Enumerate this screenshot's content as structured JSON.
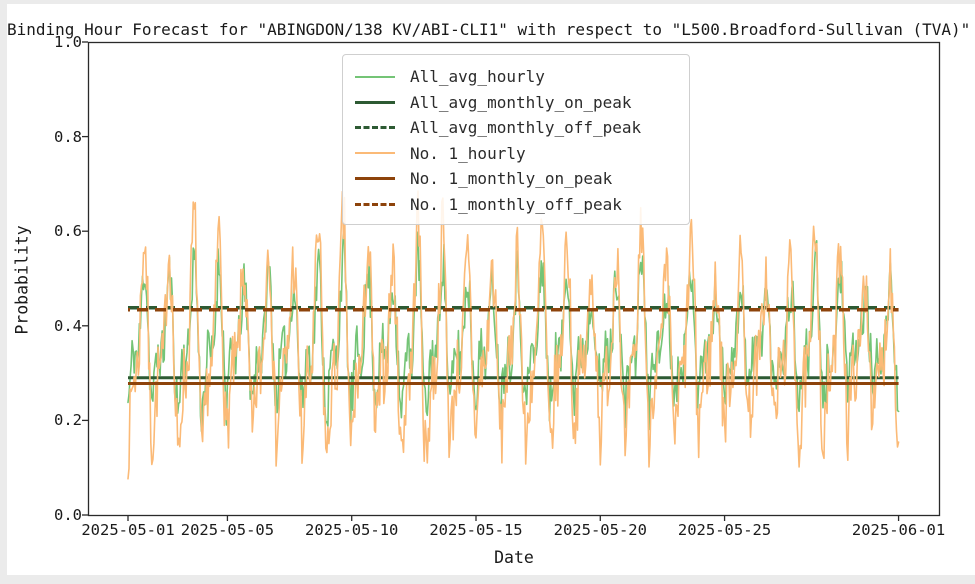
{
  "figure": {
    "title": "Binding Hour Forecast for \"ABINGDON/138 KV/ABI-CLI1\" with respect to \"L500.Broadford-Sullivan (TVA)\"",
    "xlabel": "Date",
    "ylabel": "Probability"
  },
  "chart_data": {
    "type": "line",
    "title": "Binding Hour Forecast for \"ABINGDON/138 KV/ABI-CLI1\" with respect to \"L500.Broadford-Sullivan (TVA)\"",
    "xlabel": "Date",
    "ylabel": "Probability",
    "ylim": [
      0.0,
      1.0
    ],
    "y_ticks": [
      0.0,
      0.2,
      0.4,
      0.6,
      0.8,
      1.0
    ],
    "x_start": "2025-05-01",
    "x_end": "2025-06-01",
    "x_tick_labels": [
      "2025-05-01",
      "2025-05-05",
      "2025-05-10",
      "2025-05-15",
      "2025-05-20",
      "2025-05-25",
      "2025-06-01"
    ],
    "x_tick_days": [
      0,
      4,
      9,
      14,
      19,
      24,
      31
    ],
    "hours": 744,
    "grid": false,
    "legend_position": "upper center",
    "frame_color": "#2a2a2a",
    "day_seed": 42,
    "series": [
      {
        "name": "All_avg_hourly",
        "type": "hourly",
        "color": "#74c476",
        "width": 1.6,
        "dash": null,
        "summary": {
          "min": 0.13,
          "max": 0.63,
          "mean": 0.36,
          "period": "daily oscillation, hourly samples"
        },
        "synth": {
          "seed": 11,
          "base": 0.365,
          "amp1": 0.115,
          "amp2": 0.07,
          "noise": 0.055,
          "clamp": [
            0.13,
            0.635
          ]
        }
      },
      {
        "name": "All_avg_monthly_on_peak",
        "type": "constant",
        "value": 0.29,
        "color": "#2d5a33",
        "width": 3,
        "dash": null
      },
      {
        "name": "All_avg_monthly_off_peak",
        "type": "constant",
        "value": 0.438,
        "color": "#2d5a33",
        "width": 3.5,
        "dash": [
          11,
          7
        ],
        "dash_offset": 0
      },
      {
        "name": "No. 1_hourly",
        "type": "hourly",
        "color": "#fbba77",
        "width": 1.6,
        "dash": null,
        "summary": {
          "min": 0.05,
          "max": 0.685,
          "mean": 0.34,
          "period": "daily oscillation, hourly samples"
        },
        "synth": {
          "seed": 7,
          "base": 0.345,
          "amp1": 0.19,
          "amp2": 0.09,
          "noise": 0.075,
          "clamp": [
            0.05,
            0.685
          ]
        }
      },
      {
        "name": "No. 1_monthly_on_peak",
        "type": "constant",
        "value": 0.278,
        "color": "#8d430b",
        "width": 3,
        "dash": null
      },
      {
        "name": "No. 1_monthly_off_peak",
        "type": "constant",
        "value": 0.434,
        "color": "#8d430b",
        "width": 3.5,
        "dash": [
          11,
          7
        ],
        "dash_offset": 9
      }
    ]
  }
}
